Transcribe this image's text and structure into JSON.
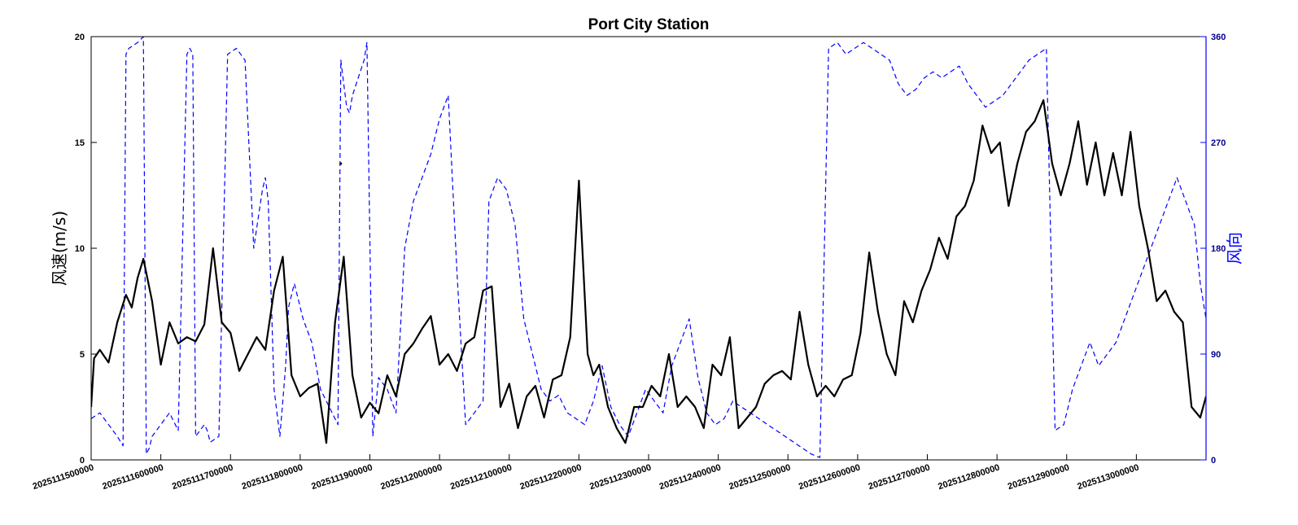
{
  "chart_data": {
    "type": "line",
    "title": "Port City Station",
    "xlabel": "",
    "ylabel_left": "风速(m/s)",
    "ylabel_right": "风向",
    "ylim_left": [
      0,
      20
    ],
    "ylim_right": [
      0,
      360
    ],
    "yticks_left": [
      "0",
      "5",
      "10",
      "15",
      "20"
    ],
    "yticks_right": [
      "0",
      "90",
      "180",
      "270",
      "360"
    ],
    "xticks": [
      "2025111500000",
      "2025111600000",
      "2025111700000",
      "2025111800000",
      "2025111900000",
      "2025112000000",
      "2025112100000",
      "2025112200000",
      "2025112300000",
      "2025112400000",
      "2025112500000",
      "2025112600000",
      "2025112700000",
      "2025112800000",
      "2025112900000",
      "2025113000000"
    ],
    "xlim": [
      0,
      384
    ],
    "grid": false,
    "legend": "none",
    "colors": {
      "speed": "#000000",
      "direction": "#0000ff",
      "right_axis": "#00008b"
    },
    "series": [
      {
        "axis": "left",
        "style": "solid",
        "x": [
          0,
          1,
          3,
          6,
          9,
          12,
          14,
          16,
          18,
          21,
          24,
          27,
          30,
          33,
          36,
          39,
          42,
          45,
          48,
          51,
          54,
          57,
          60,
          63,
          66,
          69,
          72,
          75,
          78,
          81,
          84,
          87,
          90,
          93,
          96,
          99,
          102,
          105,
          108,
          111,
          114,
          117,
          120,
          123,
          126,
          129,
          132,
          135,
          138,
          141,
          144,
          147,
          150,
          153,
          156,
          159,
          162,
          165,
          168,
          171,
          173,
          175,
          178,
          181,
          184,
          187,
          190,
          193,
          196,
          199,
          202,
          205,
          208,
          211,
          214,
          217,
          220,
          223,
          226,
          229,
          232,
          235,
          238,
          241,
          244,
          247,
          250,
          253,
          256,
          259,
          262,
          265,
          268,
          271,
          274,
          277,
          280,
          283,
          286,
          289,
          292,
          295,
          298,
          301,
          304,
          307,
          310,
          313,
          316,
          319,
          322,
          325,
          328,
          331,
          334,
          337,
          340,
          343,
          346,
          349,
          352,
          355,
          358,
          361,
          364,
          367,
          370,
          373,
          376,
          379,
          382,
          384
        ],
        "y": [
          2.5,
          4.8,
          5.2,
          4.6,
          6.5,
          7.8,
          7.2,
          8.6,
          9.5,
          7.5,
          4.5,
          6.5,
          5.5,
          5.8,
          5.6,
          6.4,
          10.0,
          6.5,
          6.0,
          4.2,
          5.0,
          5.8,
          5.2,
          8.0,
          9.6,
          4.0,
          3.0,
          3.4,
          3.6,
          0.8,
          6.5,
          9.6,
          4.0,
          2.0,
          2.7,
          2.2,
          4.0,
          3.0,
          5.0,
          5.5,
          6.2,
          6.8,
          4.5,
          5.0,
          4.2,
          5.5,
          5.8,
          8.0,
          8.2,
          2.5,
          3.6,
          1.5,
          3.0,
          3.5,
          2.0,
          3.8,
          4.0,
          5.8,
          13.2,
          5.0,
          4.0,
          4.5,
          2.5,
          1.5,
          0.8,
          2.5,
          2.5,
          3.5,
          3.0,
          5.0,
          2.5,
          3.0,
          2.5,
          1.5,
          4.5,
          4.0,
          5.8,
          1.5,
          2.0,
          2.5,
          3.6,
          4.0,
          4.2,
          3.8,
          7.0,
          4.5,
          3.0,
          3.5,
          3.0,
          3.8,
          4.0,
          6.0,
          9.8,
          7.0,
          5.0,
          4.0,
          7.5,
          6.5,
          8.0,
          9.0,
          10.5,
          9.5,
          11.5,
          12.0,
          13.2,
          15.8,
          14.5,
          15.0,
          12.0,
          14.0,
          15.5,
          16.0,
          17.0,
          14.0,
          12.5,
          14.0,
          16.0,
          13.0,
          15.0,
          12.5,
          14.5,
          12.5,
          15.5,
          12.0,
          10.0,
          7.5,
          8.0,
          7.0,
          6.5,
          2.5,
          2.0,
          3.0
        ]
      },
      {
        "axis": "right",
        "style": "dashed",
        "x": [
          0,
          3,
          6,
          9,
          11,
          12,
          13,
          16,
          18,
          19,
          20,
          21,
          24,
          27,
          30,
          33,
          34,
          35,
          36,
          39,
          40,
          41,
          44,
          47,
          50,
          53,
          56,
          59,
          60,
          61,
          63,
          65,
          66,
          67,
          68,
          70,
          73,
          76,
          79,
          82,
          85,
          86,
          87,
          88,
          89,
          90,
          92,
          94,
          95,
          97,
          99,
          102,
          105,
          108,
          111,
          114,
          117,
          120,
          123,
          126,
          129,
          132,
          135,
          137,
          140,
          143,
          146,
          149,
          152,
          155,
          158,
          161,
          164,
          167,
          170,
          173,
          176,
          179,
          182,
          185,
          188,
          191,
          194,
          197,
          200,
          203,
          206,
          209,
          212,
          215,
          218,
          221,
          224,
          227,
          230,
          233,
          236,
          239,
          242,
          245,
          248,
          251,
          254,
          257,
          260,
          263,
          266,
          269,
          272,
          275,
          278,
          281,
          284,
          287,
          290,
          293,
          296,
          299,
          302,
          305,
          308,
          311,
          314,
          317,
          320,
          323,
          326,
          329,
          332,
          335,
          338,
          341,
          344,
          347,
          350,
          353,
          356,
          359,
          362,
          365,
          368,
          371,
          374,
          377,
          380,
          382,
          384
        ],
        "y": [
          35,
          40,
          30,
          20,
          12,
          345,
          350,
          355,
          360,
          5,
          10,
          20,
          30,
          40,
          25,
          345,
          350,
          345,
          20,
          30,
          25,
          15,
          20,
          345,
          350,
          340,
          180,
          230,
          240,
          220,
          60,
          20,
          50,
          80,
          130,
          150,
          120,
          100,
          60,
          45,
          30,
          340,
          320,
          300,
          295,
          310,
          325,
          340,
          355,
          20,
          70,
          60,
          40,
          180,
          220,
          240,
          260,
          290,
          310,
          160,
          30,
          40,
          50,
          220,
          240,
          230,
          200,
          120,
          90,
          60,
          50,
          55,
          40,
          35,
          30,
          50,
          80,
          45,
          30,
          20,
          40,
          60,
          50,
          40,
          80,
          100,
          120,
          70,
          40,
          30,
          35,
          50,
          45,
          40,
          35,
          30,
          25,
          20,
          15,
          10,
          5,
          2,
          350,
          355,
          345,
          350,
          355,
          350,
          345,
          340,
          320,
          310,
          315,
          325,
          330,
          325,
          330,
          335,
          320,
          310,
          300,
          305,
          310,
          320,
          330,
          340,
          345,
          350,
          25,
          30,
          60,
          80,
          100,
          80,
          90,
          100,
          120,
          140,
          160,
          180,
          200,
          220,
          240,
          220,
          200,
          150,
          120
        ]
      }
    ],
    "markers": [
      {
        "axis": "left",
        "x": 86,
        "y": 14.0
      }
    ]
  }
}
